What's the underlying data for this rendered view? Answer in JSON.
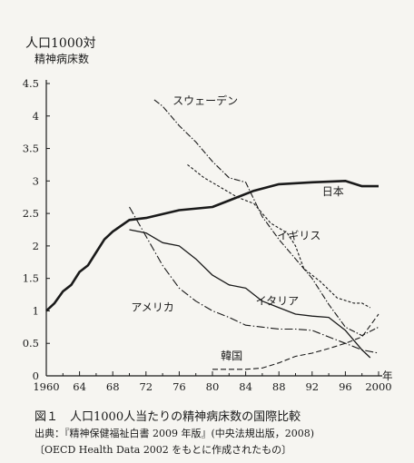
{
  "figure": {
    "title": "図１　人口1000人当たりの精神病床数の国際比較",
    "source": "出典：『精神保健福祉白書 2009 年版』(中央法規出版，2008)",
    "note": "〔OECD Health Data 2002 をもとに作成されたもの〕"
  },
  "chart_data": {
    "type": "line",
    "ylabel": "人口1000対",
    "ylabel_sub": "精神病床数",
    "xlabel": "年",
    "ylim": [
      0,
      4.5
    ],
    "xlim": [
      1960,
      2000
    ],
    "yticks": [
      "0",
      "0.5",
      "1",
      "1.5",
      "2",
      "2.5",
      "3",
      "3.5",
      "4",
      "4.5"
    ],
    "xticks": [
      "1960",
      "64",
      "68",
      "72",
      "76",
      "80",
      "84",
      "88",
      "92",
      "96",
      "2000"
    ],
    "grid": false,
    "legend": "inline labels",
    "series": [
      {
        "name": "日本",
        "style": "solid-bold",
        "x": [
          1960,
          1961,
          1962,
          1963,
          1964,
          1965,
          1966,
          1967,
          1968,
          1970,
          1972,
          1976,
          1980,
          1985,
          1988,
          1992,
          1996,
          1998,
          2000
        ],
        "y": [
          1.0,
          1.12,
          1.3,
          1.4,
          1.6,
          1.7,
          1.9,
          2.1,
          2.22,
          2.4,
          2.43,
          2.55,
          2.6,
          2.85,
          2.95,
          2.98,
          3.0,
          2.92,
          2.92
        ]
      },
      {
        "name": "スウェーデン",
        "style": "dash-dot",
        "x": [
          1973,
          1974,
          1976,
          1978,
          1980,
          1982,
          1984,
          1986,
          1988,
          1990,
          1992,
          1994,
          1996,
          1998,
          2000
        ],
        "y": [
          4.25,
          4.15,
          3.85,
          3.6,
          3.3,
          3.05,
          2.98,
          2.45,
          2.1,
          1.8,
          1.5,
          1.1,
          0.75,
          0.62,
          0.75
        ]
      },
      {
        "name": "イギリス",
        "style": "dashed",
        "x": [
          1977,
          1979,
          1981,
          1983,
          1985,
          1987,
          1989,
          1990,
          1991,
          1993,
          1995,
          1997,
          1998,
          1999
        ],
        "y": [
          3.25,
          3.05,
          2.9,
          2.75,
          2.65,
          2.35,
          2.2,
          2.0,
          1.65,
          1.45,
          1.2,
          1.12,
          1.12,
          1.05
        ]
      },
      {
        "name": "イタリア",
        "style": "solid",
        "x": [
          1970,
          1972,
          1974,
          1976,
          1978,
          1980,
          1982,
          1984,
          1986,
          1988,
          1990,
          1992,
          1994,
          1996,
          1998,
          1999
        ],
        "y": [
          2.25,
          2.2,
          2.05,
          2.0,
          1.8,
          1.55,
          1.4,
          1.35,
          1.15,
          1.05,
          0.95,
          0.92,
          0.9,
          0.7,
          0.4,
          0.28
        ]
      },
      {
        "name": "アメリカ",
        "style": "long-dash-dot",
        "x": [
          1970,
          1972,
          1974,
          1976,
          1978,
          1980,
          1982,
          1984,
          1986,
          1988,
          1990,
          1992,
          1994,
          1996,
          1998,
          2000
        ],
        "y": [
          2.6,
          2.15,
          1.7,
          1.35,
          1.15,
          1.0,
          0.9,
          0.78,
          0.75,
          0.72,
          0.72,
          0.7,
          0.6,
          0.5,
          0.4,
          0.35
        ]
      },
      {
        "name": "韓国",
        "style": "dashed-long",
        "x": [
          1980,
          1984,
          1986,
          1988,
          1990,
          1992,
          1994,
          1996,
          1998,
          2000
        ],
        "y": [
          0.1,
          0.1,
          0.12,
          0.2,
          0.3,
          0.35,
          0.42,
          0.5,
          0.6,
          0.95
        ]
      }
    ]
  }
}
